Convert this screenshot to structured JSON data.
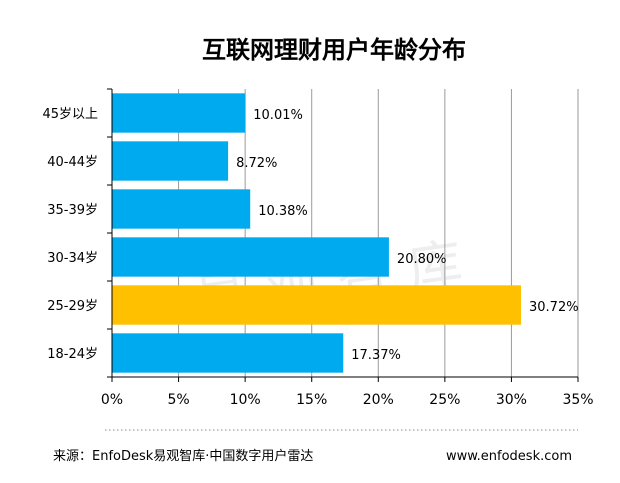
{
  "chart_data": {
    "type": "bar",
    "orientation": "horizontal",
    "title": "互联网理财用户年龄分布",
    "categories": [
      "45岁以上",
      "40-44岁",
      "35-39岁",
      "30-34岁",
      "25-29岁",
      "18-24岁"
    ],
    "values": [
      10.01,
      8.72,
      10.38,
      20.8,
      30.72,
      17.37
    ],
    "value_labels": [
      "10.01%",
      "8.72%",
      "10.38%",
      "20.80%",
      "30.72%",
      "17.37%"
    ],
    "highlight_index": 4,
    "colors": {
      "bar": "#00aaee",
      "highlight": "#ffc000",
      "grid": "#9a9a9a",
      "axis": "#000000"
    },
    "xlim": [
      0,
      35
    ],
    "xticks": [
      "0%",
      "5%",
      "10%",
      "15%",
      "20%",
      "25%",
      "30%",
      "35%"
    ],
    "grid": true,
    "legend": "none"
  },
  "watermark": "易观智库",
  "footer": {
    "source": "来源：EnfoDesk易观智库·中国数字用户雷达",
    "url": "www.enfodesk.com"
  }
}
